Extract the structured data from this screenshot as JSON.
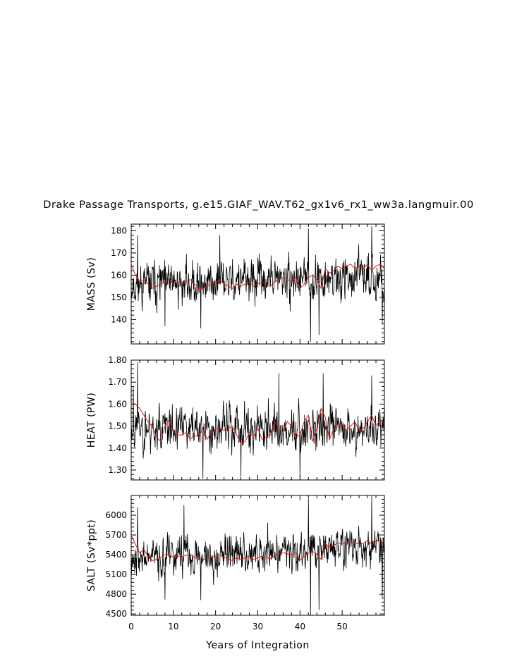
{
  "title": "Drake Passage Transports, g.e15.GIAF_WAV.T62_gx1v6_rx1_ww3a.langmuir.00",
  "colors": {
    "raw": "#000000",
    "smoothed": "#d42020",
    "axis": "#000000"
  },
  "chart_data": [
    {
      "type": "line",
      "id": "mass",
      "ylabel": "MASS (Sv)",
      "xlim": [
        0,
        60
      ],
      "ylim": [
        129,
        183
      ],
      "yticks": [
        140,
        150,
        160,
        170,
        180
      ],
      "ytick_labels": [
        "140",
        "150",
        "160",
        "170",
        "180"
      ],
      "xticks": [
        0,
        10,
        20,
        30,
        40,
        50
      ],
      "show_xtick_labels": false,
      "raw": {
        "mean": 157.5,
        "amp": 7.5,
        "drift": 0.06,
        "min": 129,
        "max": 183,
        "seed": 11,
        "spikes": [
          [
            1.5,
            178
          ],
          [
            21,
            178
          ],
          [
            42,
            181
          ],
          [
            42.5,
            130
          ],
          [
            44.5,
            133
          ],
          [
            57,
            182
          ],
          [
            16.5,
            136
          ],
          [
            8,
            137
          ],
          [
            59.5,
            138
          ]
        ]
      },
      "smoothed": {
        "x": [
          0,
          1,
          2,
          3,
          4,
          5,
          6,
          7,
          8,
          9,
          10,
          11,
          12,
          13,
          14,
          15,
          16,
          17,
          18,
          19,
          20,
          21,
          22,
          23,
          24,
          25,
          26,
          27,
          28,
          29,
          30,
          31,
          32,
          33,
          34,
          35,
          36,
          37,
          38,
          39,
          40,
          41,
          42,
          43,
          44,
          45,
          46,
          47,
          48,
          49,
          50,
          51,
          52,
          53,
          54,
          55,
          56,
          57,
          58,
          59,
          60
        ],
        "y": [
          165,
          160,
          157,
          158,
          156,
          154,
          155,
          156,
          157,
          158,
          156,
          157,
          156,
          157,
          158,
          156,
          154,
          154,
          155,
          156,
          157,
          158,
          156,
          155,
          154,
          156,
          155,
          156,
          157,
          155,
          156,
          157,
          156,
          155,
          157,
          158,
          159,
          158,
          157,
          159,
          154,
          156,
          159,
          160,
          158,
          154,
          163,
          161,
          162,
          164,
          163,
          164,
          165,
          163,
          164,
          163,
          165,
          162,
          164,
          165,
          163
        ]
      }
    },
    {
      "type": "line",
      "id": "heat",
      "ylabel": "HEAT (PW)",
      "xlim": [
        0,
        60
      ],
      "ylim": [
        1.255,
        1.8
      ],
      "yticks": [
        1.3,
        1.4,
        1.5,
        1.6,
        1.7,
        1.8
      ],
      "ytick_labels": [
        "1.30",
        "1.40",
        "1.50",
        "1.60",
        "1.70",
        "1.80"
      ],
      "xticks": [
        0,
        10,
        20,
        30,
        40,
        50
      ],
      "show_xtick_labels": false,
      "raw": {
        "mean": 1.49,
        "amp": 0.08,
        "drift": 0.0,
        "min": 1.255,
        "max": 1.8,
        "seed": 23,
        "spikes": [
          [
            1.5,
            1.79
          ],
          [
            0.5,
            1.68
          ],
          [
            17,
            1.26
          ],
          [
            26,
            1.27
          ],
          [
            40,
            1.26
          ],
          [
            35,
            1.74
          ],
          [
            45.5,
            1.74
          ],
          [
            57,
            1.73
          ]
        ]
      },
      "smoothed": {
        "x": [
          0,
          1,
          2,
          3,
          4,
          5,
          6,
          7,
          8,
          9,
          10,
          11,
          12,
          13,
          14,
          15,
          16,
          17,
          18,
          19,
          20,
          21,
          22,
          23,
          24,
          25,
          26,
          27,
          28,
          29,
          30,
          31,
          32,
          33,
          34,
          35,
          36,
          37,
          38,
          39,
          40,
          41,
          42,
          43,
          44,
          45,
          46,
          47,
          48,
          49,
          50,
          51,
          52,
          53,
          54,
          55,
          56,
          57,
          58,
          59,
          60
        ],
        "y": [
          1.61,
          1.6,
          1.58,
          1.55,
          1.52,
          1.5,
          1.45,
          1.43,
          1.5,
          1.53,
          1.47,
          1.46,
          1.46,
          1.47,
          1.44,
          1.46,
          1.45,
          1.49,
          1.44,
          1.47,
          1.49,
          1.49,
          1.48,
          1.49,
          1.5,
          1.46,
          1.42,
          1.43,
          1.47,
          1.45,
          1.49,
          1.44,
          1.45,
          1.46,
          1.52,
          1.49,
          1.47,
          1.52,
          1.5,
          1.45,
          1.46,
          1.52,
          1.55,
          1.43,
          1.49,
          1.58,
          1.54,
          1.44,
          1.49,
          1.5,
          1.51,
          1.48,
          1.5,
          1.52,
          1.48,
          1.49,
          1.52,
          1.55,
          1.5,
          1.53,
          1.51
        ]
      }
    },
    {
      "type": "line",
      "id": "salt",
      "ylabel": "SALT (Sv*ppt)",
      "xlim": [
        0,
        60
      ],
      "ylim": [
        4480,
        6300
      ],
      "yticks": [
        4500,
        4800,
        5100,
        5400,
        5700,
        6000
      ],
      "ytick_labels": [
        "4500",
        "4800",
        "5100",
        "5400",
        "5700",
        "6000"
      ],
      "xticks": [
        0,
        10,
        20,
        30,
        40,
        50
      ],
      "xtick_labels": [
        "0",
        "10",
        "20",
        "30",
        "40",
        "50"
      ],
      "show_xtick_labels": true,
      "xlabel": "Years of Integration",
      "raw": {
        "mean": 5440,
        "amp": 230,
        "drift": 3.5,
        "min": 4480,
        "max": 6300,
        "seed": 37,
        "spikes": [
          [
            1.5,
            6120
          ],
          [
            12.5,
            6150
          ],
          [
            42,
            6250
          ],
          [
            42.5,
            4480
          ],
          [
            44.5,
            4560
          ],
          [
            57,
            6290
          ],
          [
            16.5,
            4710
          ],
          [
            8,
            4720
          ],
          [
            59.5,
            4750
          ]
        ]
      },
      "smoothed": {
        "x": [
          0,
          1,
          2,
          3,
          4,
          5,
          6,
          7,
          8,
          9,
          10,
          11,
          12,
          13,
          14,
          15,
          16,
          17,
          18,
          19,
          20,
          21,
          22,
          23,
          24,
          25,
          26,
          27,
          28,
          29,
          30,
          31,
          32,
          33,
          34,
          35,
          36,
          37,
          38,
          39,
          40,
          41,
          42,
          43,
          44,
          45,
          46,
          47,
          48,
          49,
          50,
          51,
          52,
          53,
          54,
          55,
          56,
          57,
          58,
          59,
          60
        ],
        "y": [
          5700,
          5560,
          5430,
          5480,
          5380,
          5310,
          5330,
          5360,
          5400,
          5410,
          5360,
          5380,
          5370,
          5390,
          5400,
          5360,
          5320,
          5320,
          5340,
          5360,
          5380,
          5400,
          5360,
          5340,
          5310,
          5350,
          5330,
          5350,
          5380,
          5330,
          5350,
          5380,
          5360,
          5340,
          5380,
          5410,
          5430,
          5410,
          5400,
          5430,
          5320,
          5370,
          5420,
          5450,
          5410,
          5330,
          5570,
          5520,
          5540,
          5580,
          5560,
          5580,
          5600,
          5560,
          5580,
          5570,
          5620,
          5550,
          5600,
          5620,
          5590
        ]
      }
    }
  ]
}
